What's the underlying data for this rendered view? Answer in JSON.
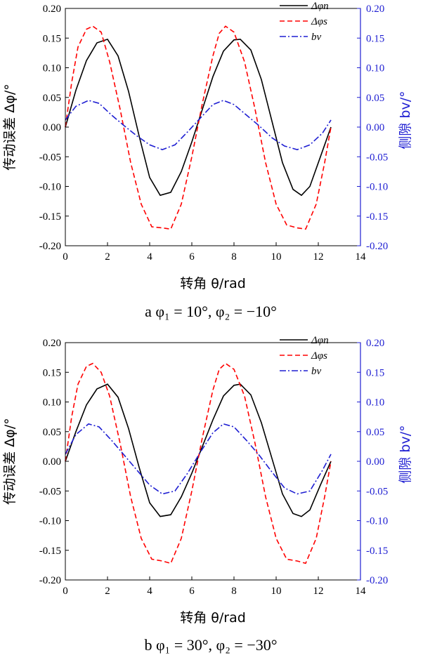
{
  "chart_data": [
    {
      "type": "line",
      "caption": "a  φ₁ = 10°,  φ₂ = −10°",
      "xlabel": "转角 θ/rad",
      "ylabel": "传动误差 Δφ/°",
      "ylabel_right": "侧隙 bv/°",
      "xlim": [
        0,
        14
      ],
      "ylim": [
        -0.2,
        0.2
      ],
      "ylim_right": [
        -0.2,
        0.2
      ],
      "x_ticks": [
        "0",
        "2",
        "4",
        "6",
        "8",
        "10",
        "12",
        "14"
      ],
      "y_ticks": [
        "0.20",
        "0.15",
        "0.10",
        "0.05",
        "0.00",
        "-0.05",
        "-0.10",
        "-0.15",
        "-0.20"
      ],
      "y_ticks_right": [
        "0.20",
        "0.15",
        "0.10",
        "0.05",
        "0.00",
        "-0.05",
        "-0.10",
        "-0.15",
        "-0.20"
      ],
      "legend_position": "top-right",
      "grid": false,
      "series": [
        {
          "name": "Δφn",
          "style": "solid",
          "color": "#000000",
          "x": [
            0,
            0.5,
            1.0,
            1.5,
            2.0,
            2.5,
            3.0,
            3.5,
            4.0,
            4.5,
            5.0,
            5.5,
            6.0,
            6.5,
            7.0,
            7.5,
            8.0,
            8.3,
            8.8,
            9.3,
            9.8,
            10.3,
            10.8,
            11.2,
            11.6,
            12.1,
            12.6
          ],
          "y": [
            0.0,
            0.062,
            0.112,
            0.142,
            0.148,
            0.12,
            0.06,
            -0.015,
            -0.085,
            -0.115,
            -0.11,
            -0.075,
            -0.025,
            0.03,
            0.085,
            0.128,
            0.147,
            0.148,
            0.13,
            0.08,
            0.01,
            -0.06,
            -0.105,
            -0.115,
            -0.1,
            -0.05,
            0.0
          ]
        },
        {
          "name": "Δφs",
          "style": "dashed",
          "color": "#ff0000",
          "x": [
            0,
            0.3,
            0.6,
            1.0,
            1.3,
            1.7,
            2.1,
            2.6,
            3.1,
            3.6,
            4.1,
            4.6,
            5.0,
            5.5,
            6.0,
            6.5,
            7.0,
            7.3,
            7.6,
            8.0,
            8.5,
            9.0,
            9.5,
            10.0,
            10.5,
            11.0,
            11.4,
            11.9,
            12.3,
            12.6
          ],
          "y": [
            0.0,
            0.075,
            0.135,
            0.165,
            0.17,
            0.16,
            0.11,
            0.03,
            -0.06,
            -0.13,
            -0.168,
            -0.17,
            -0.172,
            -0.13,
            -0.05,
            0.04,
            0.12,
            0.158,
            0.17,
            0.16,
            0.11,
            0.03,
            -0.06,
            -0.13,
            -0.165,
            -0.17,
            -0.172,
            -0.13,
            -0.06,
            0.0
          ]
        },
        {
          "name": "bv",
          "style": "dashdot",
          "color": "#1e1ed2",
          "x": [
            0,
            0.5,
            1.1,
            1.6,
            2.2,
            2.8,
            3.4,
            4.0,
            4.6,
            5.2,
            5.8,
            6.4,
            7.0,
            7.5,
            8.0,
            8.6,
            9.2,
            9.8,
            10.4,
            11.0,
            11.6,
            12.2,
            12.6
          ],
          "y": [
            0.012,
            0.035,
            0.045,
            0.04,
            0.02,
            0.002,
            -0.015,
            -0.03,
            -0.038,
            -0.03,
            -0.008,
            0.015,
            0.038,
            0.045,
            0.038,
            0.02,
            0.002,
            -0.018,
            -0.032,
            -0.038,
            -0.03,
            -0.01,
            0.012
          ]
        }
      ]
    },
    {
      "type": "line",
      "caption": "b  φ₁ = 30°,  φ₂ = −30°",
      "xlabel": "转角 θ/rad",
      "ylabel": "传动误差 Δφ/°",
      "ylabel_right": "侧隙 bv/°",
      "xlim": [
        0,
        14
      ],
      "ylim": [
        -0.2,
        0.2
      ],
      "ylim_right": [
        -0.2,
        0.2
      ],
      "x_ticks": [
        "0",
        "2",
        "4",
        "6",
        "8",
        "10",
        "12",
        "14"
      ],
      "y_ticks": [
        "0.20",
        "0.15",
        "0.10",
        "0.05",
        "0.00",
        "-0.05",
        "-0.10",
        "-0.15",
        "-0.20"
      ],
      "y_ticks_right": [
        "0.20",
        "0.15",
        "0.10",
        "0.05",
        "0.00",
        "-0.05",
        "-0.10",
        "-0.15",
        "-0.20"
      ],
      "legend_position": "top-right",
      "grid": false,
      "series": [
        {
          "name": "Δφn",
          "style": "solid",
          "color": "#000000",
          "x": [
            0,
            0.5,
            1.0,
            1.5,
            2.0,
            2.5,
            3.0,
            3.5,
            4.0,
            4.5,
            5.0,
            5.5,
            6.0,
            6.5,
            7.0,
            7.5,
            8.0,
            8.3,
            8.8,
            9.3,
            9.8,
            10.3,
            10.8,
            11.2,
            11.6,
            12.1,
            12.6
          ],
          "y": [
            0.0,
            0.05,
            0.095,
            0.122,
            0.13,
            0.108,
            0.055,
            -0.01,
            -0.07,
            -0.093,
            -0.09,
            -0.06,
            -0.02,
            0.025,
            0.07,
            0.11,
            0.128,
            0.13,
            0.112,
            0.065,
            0.005,
            -0.055,
            -0.088,
            -0.093,
            -0.082,
            -0.04,
            0.0
          ]
        },
        {
          "name": "Δφs",
          "style": "dashed",
          "color": "#ff0000",
          "x": [
            0,
            0.3,
            0.6,
            1.0,
            1.3,
            1.7,
            2.1,
            2.6,
            3.1,
            3.6,
            4.1,
            4.6,
            5.0,
            5.5,
            6.0,
            6.5,
            7.0,
            7.3,
            7.6,
            8.0,
            8.5,
            9.0,
            9.5,
            10.0,
            10.5,
            11.0,
            11.4,
            11.9,
            12.3,
            12.6
          ],
          "y": [
            0.0,
            0.075,
            0.13,
            0.16,
            0.165,
            0.15,
            0.11,
            0.03,
            -0.06,
            -0.13,
            -0.165,
            -0.168,
            -0.172,
            -0.13,
            -0.05,
            0.04,
            0.12,
            0.155,
            0.165,
            0.155,
            0.11,
            0.03,
            -0.06,
            -0.13,
            -0.165,
            -0.168,
            -0.172,
            -0.13,
            -0.06,
            0.0
          ]
        },
        {
          "name": "bv",
          "style": "dashdot",
          "color": "#1e1ed2",
          "x": [
            0,
            0.5,
            1.1,
            1.6,
            2.2,
            2.8,
            3.4,
            4.0,
            4.6,
            5.2,
            5.8,
            6.4,
            7.0,
            7.5,
            8.0,
            8.6,
            9.2,
            9.8,
            10.4,
            11.0,
            11.6,
            12.2,
            12.6
          ],
          "y": [
            0.012,
            0.045,
            0.063,
            0.058,
            0.035,
            0.01,
            -0.015,
            -0.04,
            -0.055,
            -0.05,
            -0.02,
            0.015,
            0.048,
            0.063,
            0.058,
            0.035,
            0.01,
            -0.018,
            -0.045,
            -0.055,
            -0.05,
            -0.015,
            0.012
          ]
        }
      ]
    }
  ]
}
